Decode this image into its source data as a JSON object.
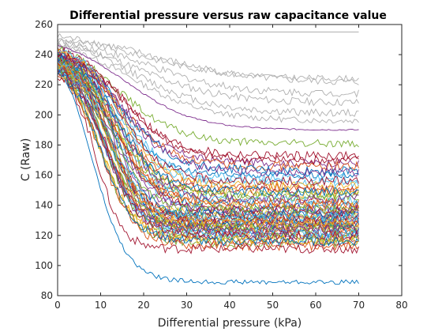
{
  "chart_data": {
    "type": "line",
    "title": "Differential pressure versus raw capacitance value",
    "xlabel": "Differential pressure (kPa)",
    "ylabel": "C (Raw)",
    "xlim": [
      0,
      80
    ],
    "ylim": [
      80,
      260
    ],
    "x_ticks": [
      0,
      10,
      20,
      30,
      40,
      50,
      60,
      70,
      80
    ],
    "y_ticks": [
      80,
      100,
      120,
      140,
      160,
      180,
      200,
      220,
      240,
      260
    ],
    "grid": false,
    "legend": "none",
    "x_range_of_series": [
      0,
      70
    ],
    "series_colors": [
      "#0072bd",
      "#d95319",
      "#edb120",
      "#7e2f8e",
      "#77ac30",
      "#4dbeee",
      "#a2142f",
      "#b0b0b0"
    ],
    "series": [
      {
        "color": "#b0b0b0",
        "start": 255,
        "end": 255,
        "midpoint": 99,
        "steepness": 1,
        "noise": 0
      },
      {
        "color": "#b0b0b0",
        "start": 252,
        "end": 221,
        "midpoint": 22,
        "steepness": 12,
        "noise": 2.5
      },
      {
        "color": "#b0b0b0",
        "start": 250,
        "end": 224,
        "midpoint": 20,
        "steepness": 10,
        "noise": 2
      },
      {
        "color": "#b0b0b0",
        "start": 249,
        "end": 214,
        "midpoint": 20,
        "steepness": 10,
        "noise": 2.5
      },
      {
        "color": "#b0b0b0",
        "start": 248,
        "end": 208,
        "midpoint": 18,
        "steepness": 10,
        "noise": 2.5
      },
      {
        "color": "#b0b0b0",
        "start": 247,
        "end": 201,
        "midpoint": 18,
        "steepness": 9,
        "noise": 2.5
      },
      {
        "color": "#b0b0b0",
        "start": 246,
        "end": 196,
        "midpoint": 17,
        "steepness": 9,
        "noise": 2
      },
      {
        "color": "#7e2f8e",
        "start": 246,
        "end": 190,
        "midpoint": 16,
        "steepness": 8,
        "noise": 0.5
      },
      {
        "color": "#77ac30",
        "start": 244,
        "end": 181,
        "midpoint": 14,
        "steepness": 7,
        "noise": 2.5
      },
      {
        "color": "#a2142f",
        "start": 243,
        "end": 173,
        "midpoint": 15,
        "steepness": 6,
        "noise": 3
      },
      {
        "color": "#7e2f8e",
        "start": 243,
        "end": 168,
        "midpoint": 14,
        "steepness": 6,
        "noise": 2.5
      },
      {
        "color": "#d95319",
        "start": 242,
        "end": 166,
        "midpoint": 14,
        "steepness": 6,
        "noise": 3
      },
      {
        "color": "#0072bd",
        "start": 241,
        "end": 160,
        "midpoint": 14,
        "steepness": 5,
        "noise": 2
      },
      {
        "color": "#4dbeee",
        "start": 240,
        "end": 155,
        "midpoint": 14,
        "steepness": 5,
        "noise": 3
      },
      {
        "color": "#a2142f",
        "start": 240,
        "end": 150,
        "midpoint": 13,
        "steepness": 5,
        "noise": 3
      },
      {
        "color": "#edb120",
        "start": 239,
        "end": 148,
        "midpoint": 13,
        "steepness": 5,
        "noise": 3
      },
      {
        "color": "#77ac30",
        "start": 238,
        "end": 145,
        "midpoint": 13,
        "steepness": 5,
        "noise": 3
      },
      {
        "color": "#d95319",
        "start": 238,
        "end": 142,
        "midpoint": 13,
        "steepness": 5,
        "noise": 3
      },
      {
        "color": "#0072bd",
        "start": 237,
        "end": 140,
        "midpoint": 13,
        "steepness": 5,
        "noise": 3
      },
      {
        "color": "#7e2f8e",
        "start": 237,
        "end": 138,
        "midpoint": 12,
        "steepness": 4,
        "noise": 3
      },
      {
        "color": "#4dbeee",
        "start": 236,
        "end": 136,
        "midpoint": 13,
        "steepness": 5,
        "noise": 3
      },
      {
        "color": "#edb120",
        "start": 236,
        "end": 134,
        "midpoint": 12,
        "steepness": 4,
        "noise": 3
      },
      {
        "color": "#a2142f",
        "start": 235,
        "end": 133,
        "midpoint": 12,
        "steepness": 4,
        "noise": 3
      },
      {
        "color": "#77ac30",
        "start": 235,
        "end": 132,
        "midpoint": 12,
        "steepness": 4,
        "noise": 3
      },
      {
        "color": "#d95319",
        "start": 234,
        "end": 131,
        "midpoint": 12,
        "steepness": 4,
        "noise": 3
      },
      {
        "color": "#0072bd",
        "start": 234,
        "end": 130,
        "midpoint": 12,
        "steepness": 4,
        "noise": 3
      },
      {
        "color": "#4dbeee",
        "start": 233,
        "end": 129,
        "midpoint": 12,
        "steepness": 4,
        "noise": 3
      },
      {
        "color": "#7e2f8e",
        "start": 233,
        "end": 128,
        "midpoint": 12,
        "steepness": 4,
        "noise": 3
      },
      {
        "color": "#edb120",
        "start": 232,
        "end": 127,
        "midpoint": 11,
        "steepness": 4,
        "noise": 3
      },
      {
        "color": "#a2142f",
        "start": 232,
        "end": 126,
        "midpoint": 11,
        "steepness": 4,
        "noise": 3
      },
      {
        "color": "#77ac30",
        "start": 231,
        "end": 125,
        "midpoint": 11,
        "steepness": 4,
        "noise": 3
      },
      {
        "color": "#d95319",
        "start": 231,
        "end": 124,
        "midpoint": 11,
        "steepness": 4,
        "noise": 3
      },
      {
        "color": "#0072bd",
        "start": 230,
        "end": 122,
        "midpoint": 11,
        "steepness": 4,
        "noise": 3
      },
      {
        "color": "#4dbeee",
        "start": 230,
        "end": 121,
        "midpoint": 11,
        "steepness": 4,
        "noise": 3
      },
      {
        "color": "#7e2f8e",
        "start": 229,
        "end": 120,
        "midpoint": 11,
        "steepness": 4,
        "noise": 3
      },
      {
        "color": "#edb120",
        "start": 229,
        "end": 118,
        "midpoint": 10,
        "steepness": 4,
        "noise": 3
      },
      {
        "color": "#a2142f",
        "start": 228,
        "end": 116,
        "midpoint": 10,
        "steepness": 4,
        "noise": 3
      },
      {
        "color": "#77ac30",
        "start": 228,
        "end": 115,
        "midpoint": 10,
        "steepness": 4,
        "noise": 3
      },
      {
        "color": "#d95319",
        "start": 227,
        "end": 113,
        "midpoint": 10,
        "steepness": 4,
        "noise": 3
      },
      {
        "color": "#a2142f",
        "start": 226,
        "end": 111,
        "midpoint": 9,
        "steepness": 3,
        "noise": 3
      },
      {
        "color": "#0072bd",
        "start": 233,
        "end": 89,
        "midpoint": 8,
        "steepness": 4,
        "noise": 1.5
      },
      {
        "color": "#a2142f",
        "start": 241,
        "end": 170,
        "midpoint": 16,
        "steepness": 6,
        "noise": 3
      },
      {
        "color": "#0072bd",
        "start": 240,
        "end": 163,
        "midpoint": 15,
        "steepness": 6,
        "noise": 3
      },
      {
        "color": "#d95319",
        "start": 239,
        "end": 152,
        "midpoint": 14,
        "steepness": 5,
        "noise": 3
      },
      {
        "color": "#77ac30",
        "start": 238,
        "end": 147,
        "midpoint": 14,
        "steepness": 5,
        "noise": 3
      },
      {
        "color": "#4dbeee",
        "start": 237,
        "end": 143,
        "midpoint": 14,
        "steepness": 5,
        "noise": 3
      },
      {
        "color": "#edb120",
        "start": 236,
        "end": 139,
        "midpoint": 13,
        "steepness": 5,
        "noise": 3
      },
      {
        "color": "#7e2f8e",
        "start": 235,
        "end": 135,
        "midpoint": 13,
        "steepness": 5,
        "noise": 3
      },
      {
        "color": "#a2142f",
        "start": 234,
        "end": 131,
        "midpoint": 12,
        "steepness": 4,
        "noise": 3
      },
      {
        "color": "#0072bd",
        "start": 233,
        "end": 127,
        "midpoint": 12,
        "steepness": 4,
        "noise": 3
      },
      {
        "color": "#d95319",
        "start": 232,
        "end": 123,
        "midpoint": 11,
        "steepness": 4,
        "noise": 3
      },
      {
        "color": "#77ac30",
        "start": 231,
        "end": 119,
        "midpoint": 11,
        "steepness": 4,
        "noise": 3
      },
      {
        "color": "#4dbeee",
        "start": 243,
        "end": 158,
        "midpoint": 15,
        "steepness": 5,
        "noise": 3
      },
      {
        "color": "#edb120",
        "start": 242,
        "end": 153,
        "midpoint": 15,
        "steepness": 5,
        "noise": 3
      },
      {
        "color": "#7e2f8e",
        "start": 239,
        "end": 144,
        "midpoint": 14,
        "steepness": 5,
        "noise": 3
      },
      {
        "color": "#a2142f",
        "start": 238,
        "end": 137,
        "midpoint": 13,
        "steepness": 5,
        "noise": 3
      },
      {
        "color": "#0072bd",
        "start": 236,
        "end": 134,
        "midpoint": 13,
        "steepness": 4,
        "noise": 3
      },
      {
        "color": "#d95319",
        "start": 235,
        "end": 129,
        "midpoint": 12,
        "steepness": 4,
        "noise": 3
      },
      {
        "color": "#77ac30",
        "start": 233,
        "end": 125,
        "midpoint": 12,
        "steepness": 4,
        "noise": 3
      },
      {
        "color": "#4dbeee",
        "start": 232,
        "end": 121,
        "midpoint": 11,
        "steepness": 4,
        "noise": 3
      },
      {
        "color": "#edb120",
        "start": 230,
        "end": 117,
        "midpoint": 10,
        "steepness": 4,
        "noise": 3
      },
      {
        "color": "#7e2f8e",
        "start": 241,
        "end": 162,
        "midpoint": 15,
        "steepness": 6,
        "noise": 3
      },
      {
        "color": "#a2142f",
        "start": 240,
        "end": 156,
        "midpoint": 15,
        "steepness": 5,
        "noise": 3
      },
      {
        "color": "#0072bd",
        "start": 239,
        "end": 149,
        "midpoint": 14,
        "steepness": 5,
        "noise": 3
      },
      {
        "color": "#d95319",
        "start": 237,
        "end": 141,
        "midpoint": 13,
        "steepness": 5,
        "noise": 3
      },
      {
        "color": "#77ac30",
        "start": 236,
        "end": 137,
        "midpoint": 13,
        "steepness": 4,
        "noise": 3
      },
      {
        "color": "#4dbeee",
        "start": 234,
        "end": 132,
        "midpoint": 12,
        "steepness": 4,
        "noise": 3
      },
      {
        "color": "#edb120",
        "start": 233,
        "end": 128,
        "midpoint": 12,
        "steepness": 4,
        "noise": 3
      },
      {
        "color": "#7e2f8e",
        "start": 231,
        "end": 124,
        "midpoint": 11,
        "steepness": 4,
        "noise": 3
      },
      {
        "color": "#a2142f",
        "start": 230,
        "end": 120,
        "midpoint": 11,
        "steepness": 4,
        "noise": 3
      },
      {
        "color": "#0072bd",
        "start": 229,
        "end": 116,
        "midpoint": 10,
        "steepness": 4,
        "noise": 3
      }
    ]
  }
}
